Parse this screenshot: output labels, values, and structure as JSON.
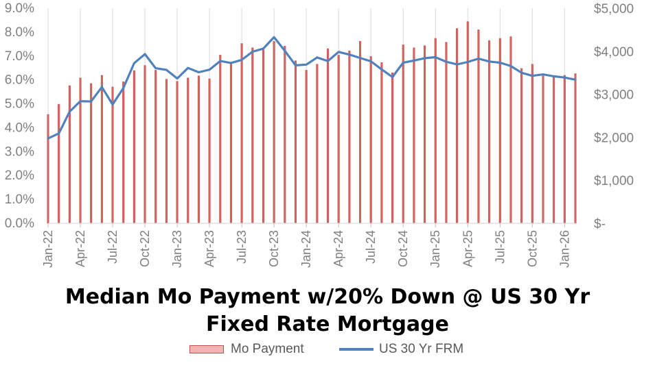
{
  "chart_data": {
    "type": "bar+line",
    "title": "Median Mo Payment w/20% Down @ US 30 Yr Fixed Rate Mortgage",
    "title_lines": [
      "Median Mo Payment w/20% Down @ US 30 Yr",
      "Fixed Rate Mortgage"
    ],
    "x": [
      "Jan-22",
      "Feb-22",
      "Mar-22",
      "Apr-22",
      "May-22",
      "Jun-22",
      "Jul-22",
      "Aug-22",
      "Sep-22",
      "Oct-22",
      "Nov-22",
      "Dec-22",
      "Jan-23",
      "Feb-23",
      "Mar-23",
      "Apr-23",
      "May-23",
      "Jun-23",
      "Jul-23",
      "Aug-23",
      "Sep-23",
      "Oct-23",
      "Nov-23",
      "Dec-23",
      "Jan-24",
      "Feb-24",
      "Mar-24",
      "Apr-24",
      "May-24",
      "Jun-24",
      "Jul-24",
      "Aug-24",
      "Sep-24",
      "Oct-24",
      "Nov-24",
      "Dec-24",
      "Jan-25",
      "Feb-25",
      "Mar-25",
      "Apr-25",
      "May-25",
      "Jun-25",
      "Jul-25",
      "Aug-25",
      "Sep-25",
      "Oct-25",
      "Nov-25",
      "Dec-25",
      "Jan-26",
      "Feb-26"
    ],
    "x_tick_labels": [
      "Jan-22",
      "Apr-22",
      "Jul-22",
      "Oct-22",
      "Jan-23",
      "Apr-23",
      "Jul-23",
      "Oct-23",
      "Jan-24",
      "Apr-24",
      "Jul-24",
      "Oct-24",
      "Jan-25",
      "Apr-25",
      "Jul-25",
      "Oct-25",
      "Jan-26"
    ],
    "series": [
      {
        "name": "Mo Payment",
        "type": "bar",
        "axis": "right",
        "color": "#c0504d",
        "values": [
          2530,
          2770,
          3200,
          3380,
          3250,
          3440,
          3170,
          3290,
          3550,
          3670,
          3560,
          3350,
          3300,
          3380,
          3430,
          3360,
          3910,
          3740,
          4180,
          4080,
          4060,
          4230,
          4120,
          3780,
          3560,
          3700,
          4060,
          3910,
          4010,
          4230,
          3880,
          3740,
          3500,
          4150,
          4080,
          4130,
          4300,
          4210,
          4530,
          4690,
          4500,
          4250,
          4300,
          4340,
          3600,
          3700,
          3430,
          3420,
          3440,
          3480
        ]
      },
      {
        "name": "US 30 Yr FRM",
        "type": "line",
        "axis": "left",
        "color": "#4f81bd",
        "values": [
          3.55,
          3.76,
          4.67,
          5.11,
          5.1,
          5.7,
          4.97,
          5.66,
          6.7,
          7.08,
          6.49,
          6.42,
          6.06,
          6.5,
          6.32,
          6.43,
          6.79,
          6.71,
          6.84,
          7.18,
          7.31,
          7.79,
          7.22,
          6.61,
          6.64,
          6.94,
          6.79,
          7.17,
          7.06,
          6.92,
          6.78,
          6.44,
          6.12,
          6.72,
          6.81,
          6.91,
          6.95,
          6.76,
          6.65,
          6.75,
          6.89,
          6.77,
          6.72,
          6.58,
          6.3,
          6.17,
          6.23,
          6.15,
          6.1,
          6.01
        ]
      }
    ],
    "y_left": {
      "min": 0,
      "max": 9,
      "ticks": [
        "0.0%",
        "1.0%",
        "2.0%",
        "3.0%",
        "4.0%",
        "5.0%",
        "6.0%",
        "7.0%",
        "8.0%",
        "9.0%"
      ]
    },
    "y_right": {
      "min": 0,
      "max": 5000,
      "ticks": [
        "$-",
        "$1,000",
        "$2,000",
        "$3,000",
        "$4,000",
        "$5,000"
      ]
    },
    "grid": "vertical",
    "legend_position": "bottom"
  }
}
